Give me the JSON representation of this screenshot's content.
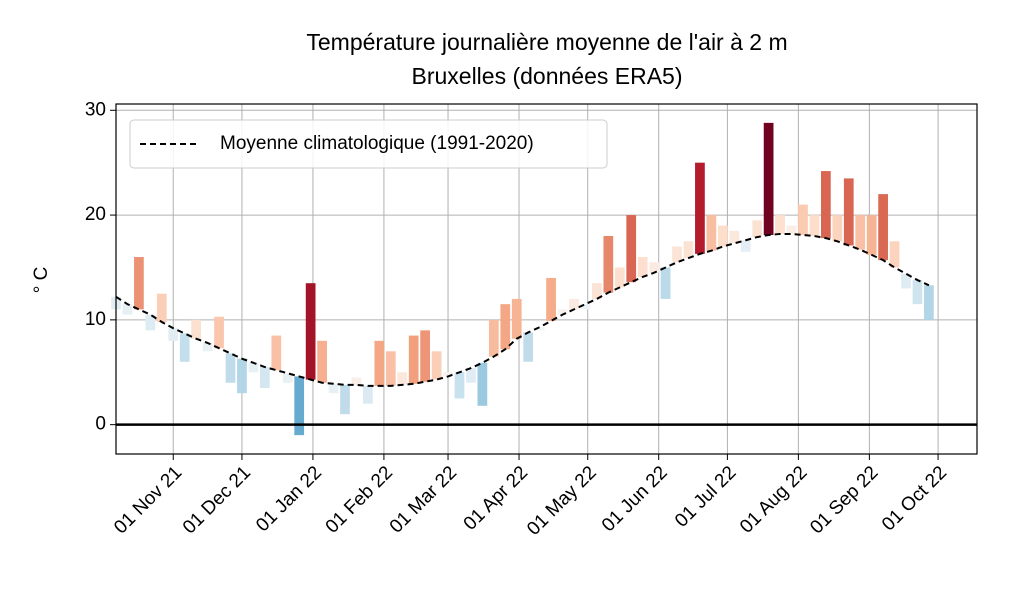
{
  "chart_data": {
    "type": "bar",
    "title": "Température journalière moyenne de l'air à 2 m",
    "subtitle": "Bruxelles (données ERA5)",
    "ylabel": "° C",
    "x": [
      "2021-10-07",
      "2021-10-12",
      "2021-10-17",
      "2021-10-22",
      "2021-10-27",
      "2021-11-01",
      "2021-11-06",
      "2021-11-11",
      "2021-11-16",
      "2021-11-21",
      "2021-11-26",
      "2021-12-01",
      "2021-12-06",
      "2021-12-11",
      "2021-12-16",
      "2021-12-21",
      "2021-12-26",
      "2021-12-31",
      "2022-01-05",
      "2022-01-10",
      "2022-01-15",
      "2022-01-20",
      "2022-01-25",
      "2022-01-30",
      "2022-02-04",
      "2022-02-09",
      "2022-02-14",
      "2022-02-19",
      "2022-02-24",
      "2022-03-01",
      "2022-03-06",
      "2022-03-11",
      "2022-03-16",
      "2022-03-21",
      "2022-03-26",
      "2022-03-31",
      "2022-04-05",
      "2022-04-10",
      "2022-04-15",
      "2022-04-20",
      "2022-04-25",
      "2022-04-30",
      "2022-05-05",
      "2022-05-10",
      "2022-05-15",
      "2022-05-20",
      "2022-05-25",
      "2022-05-30",
      "2022-06-04",
      "2022-06-09",
      "2022-06-14",
      "2022-06-19",
      "2022-06-24",
      "2022-06-29",
      "2022-07-04",
      "2022-07-09",
      "2022-07-14",
      "2022-07-19",
      "2022-07-24",
      "2022-07-29",
      "2022-08-03",
      "2022-08-08",
      "2022-08-13",
      "2022-08-18",
      "2022-08-23",
      "2022-08-28",
      "2022-09-02",
      "2022-09-07",
      "2022-09-12",
      "2022-09-17",
      "2022-09-22",
      "2022-09-27"
    ],
    "values": [
      11,
      10.5,
      16,
      9,
      12.5,
      8,
      6,
      10,
      7,
      10.3,
      4,
      3,
      5,
      3.5,
      8.5,
      4,
      -1,
      13.5,
      8,
      3,
      1,
      4.5,
      2,
      8,
      7,
      5,
      8.5,
      9,
      7,
      5,
      2.5,
      4,
      1.8,
      10,
      11.5,
      12,
      6,
      9,
      14,
      11,
      12,
      11,
      13.5,
      18,
      15,
      20,
      16,
      15.5,
      12,
      17,
      17.5,
      25,
      20,
      19,
      18.5,
      16.5,
      19.5,
      28.8,
      20,
      19,
      21,
      20,
      24.2,
      20,
      23.5,
      20,
      20,
      22,
      17.5,
      13,
      11.5,
      10
    ],
    "series": [
      {
        "name": "Moyenne climatologique (1991-2020)",
        "color": "#000000",
        "style": "dashed",
        "values": [
          12.2,
          11.5,
          11,
          10.5,
          9.8,
          9.2,
          8.7,
          8.2,
          7.8,
          7.3,
          6.8,
          6.3,
          5.9,
          5.5,
          5.2,
          4.9,
          4.6,
          4.3,
          4,
          3.9,
          3.8,
          3.8,
          3.7,
          3.7,
          3.7,
          3.8,
          3.9,
          4.1,
          4.3,
          4.6,
          5,
          5.4,
          5.9,
          6.5,
          7.2,
          8.2,
          8.8,
          9.3,
          9.9,
          10.5,
          11,
          11.5,
          12,
          12.6,
          13.1,
          13.6,
          14.1,
          14.5,
          15,
          15.5,
          15.9,
          16.3,
          16.6,
          17,
          17.3,
          17.6,
          17.9,
          18.1,
          18.2,
          18.2,
          18.1,
          18,
          17.8,
          17.5,
          17.1,
          16.7,
          16.2,
          15.7,
          15,
          14.4,
          13.8,
          13.3
        ]
      }
    ],
    "xlim": [
      "2021-10-07",
      "2022-10-18"
    ],
    "xticks": [
      {
        "value": "2021-11-01",
        "label": "01 Nov 21"
      },
      {
        "value": "2021-12-01",
        "label": "01 Dec 21"
      },
      {
        "value": "2022-01-01",
        "label": "01 Jan 22"
      },
      {
        "value": "2022-02-01",
        "label": "01 Feb 22"
      },
      {
        "value": "2022-03-01",
        "label": "01 Mar 22"
      },
      {
        "value": "2022-04-01",
        "label": "01 Apr 22"
      },
      {
        "value": "2022-05-01",
        "label": "01 May 22"
      },
      {
        "value": "2022-06-01",
        "label": "01 Jun 22"
      },
      {
        "value": "2022-07-01",
        "label": "01 Jul 22"
      },
      {
        "value": "2022-08-01",
        "label": "01 Aug 22"
      },
      {
        "value": "2022-09-01",
        "label": "01 Sep 22"
      },
      {
        "value": "2022-10-01",
        "label": "01 Oct 22"
      }
    ],
    "ylim": [
      -2.8,
      30.6
    ],
    "yticks": [
      0,
      10,
      20,
      30
    ],
    "hline": 0,
    "grid": true,
    "legend": "upper left"
  }
}
